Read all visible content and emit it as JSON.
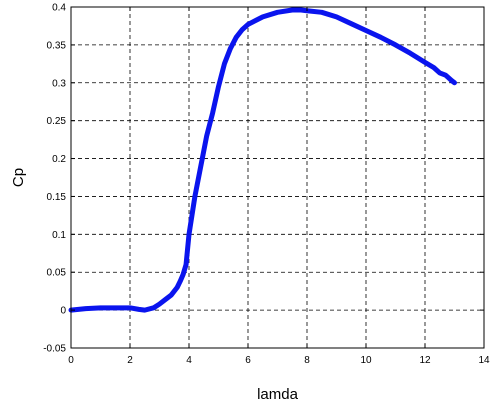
{
  "chart_data": {
    "type": "line",
    "title": "",
    "xlabel": "lamda",
    "ylabel": "Cp",
    "xlim": [
      0,
      14
    ],
    "ylim": [
      -0.05,
      0.4
    ],
    "xticks": [
      0,
      2,
      4,
      6,
      8,
      10,
      12,
      14
    ],
    "yticks": [
      -0.05,
      0,
      0.05,
      0.1,
      0.15,
      0.2,
      0.25,
      0.3,
      0.35,
      0.4
    ],
    "xtick_labels": [
      "0",
      "2",
      "4",
      "6",
      "8",
      "10",
      "12",
      "14"
    ],
    "ytick_labels": [
      "-0.05",
      "0",
      "0.05",
      "0.1",
      "0.15",
      "0.2",
      "0.25",
      "0.3",
      "0.35",
      "0.4"
    ],
    "grid": true,
    "grid_style": "dashed",
    "series": [
      {
        "color": "#0a14ee",
        "x": [
          0,
          0.5,
          1.0,
          1.5,
          2.0,
          2.3,
          2.5,
          2.8,
          3.0,
          3.2,
          3.4,
          3.6,
          3.7,
          3.8,
          3.9,
          4.0,
          4.2,
          4.4,
          4.6,
          4.8,
          5.0,
          5.2,
          5.4,
          5.6,
          5.8,
          6.0,
          6.5,
          7.0,
          7.5,
          7.8,
          8.0,
          8.5,
          9.0,
          9.5,
          10.0,
          10.5,
          11.0,
          11.5,
          12.0,
          12.3,
          12.5,
          12.7,
          12.9,
          13.0
        ],
        "y": [
          0.0,
          0.002,
          0.003,
          0.003,
          0.003,
          0.001,
          0.0,
          0.003,
          0.008,
          0.014,
          0.02,
          0.03,
          0.038,
          0.047,
          0.06,
          0.1,
          0.15,
          0.19,
          0.23,
          0.26,
          0.295,
          0.325,
          0.345,
          0.36,
          0.37,
          0.377,
          0.387,
          0.393,
          0.396,
          0.396,
          0.395,
          0.393,
          0.387,
          0.378,
          0.369,
          0.36,
          0.35,
          0.339,
          0.327,
          0.32,
          0.313,
          0.31,
          0.303,
          0.3
        ]
      }
    ]
  }
}
